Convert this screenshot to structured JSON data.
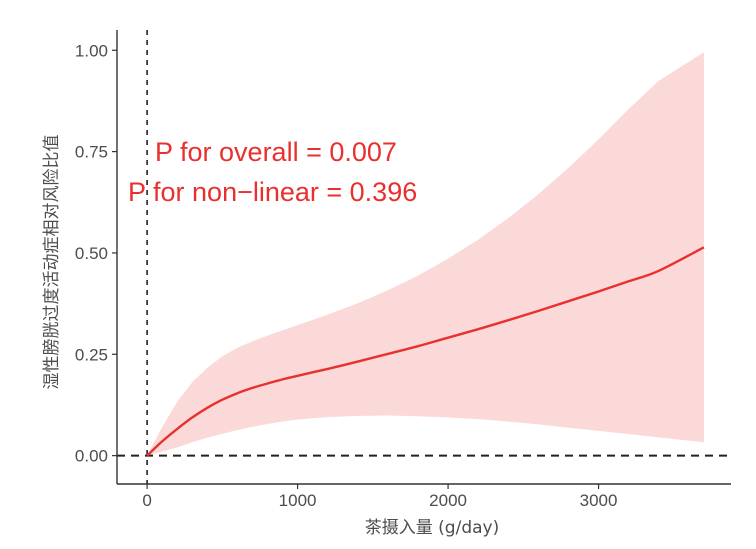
{
  "chart_data": {
    "type": "line",
    "title": "",
    "xlabel": "茶摄入量 (g/day)",
    "ylabel": "湿性膀胱过度活动症相对风险比值",
    "xlim": [
      -200,
      3880
    ],
    "ylim": [
      -0.07,
      1.05
    ],
    "x_ticks": [
      0,
      1000,
      2000,
      3000
    ],
    "x_tick_labels": [
      "0",
      "1000",
      "2000",
      "3000"
    ],
    "y_ticks": [
      0,
      0.25,
      0.5,
      0.75,
      1.0
    ],
    "y_tick_labels": [
      "0.00",
      "0.25",
      "0.50",
      "0.75",
      "1.00"
    ],
    "grid": false,
    "reference_lines": {
      "vertical_x": 0,
      "horizontal_y": 0,
      "style": "dashed"
    },
    "colors": {
      "line": "#e8312f",
      "ribbon": "#fbd9d9",
      "axis": "#333333",
      "text": "#4d4d4d"
    },
    "series": [
      {
        "x": [
          0,
          100,
          200,
          300,
          400,
          500,
          600,
          700,
          800,
          900,
          1000,
          1200,
          1400,
          1600,
          1800,
          2000,
          2200,
          2400,
          2600,
          2800,
          3000,
          3200,
          3400,
          3700
        ],
        "y": [
          0.0,
          0.035,
          0.066,
          0.094,
          0.118,
          0.138,
          0.154,
          0.167,
          0.178,
          0.188,
          0.197,
          0.214,
          0.232,
          0.251,
          0.27,
          0.291,
          0.312,
          0.334,
          0.357,
          0.381,
          0.405,
          0.43,
          0.456,
          0.514
        ],
        "lower": [
          0.0,
          0.01,
          0.02,
          0.033,
          0.044,
          0.054,
          0.063,
          0.071,
          0.078,
          0.084,
          0.089,
          0.095,
          0.098,
          0.099,
          0.097,
          0.094,
          0.09,
          0.084,
          0.077,
          0.069,
          0.061,
          0.053,
          0.045,
          0.033
        ],
        "upper": [
          0.0,
          0.07,
          0.133,
          0.181,
          0.217,
          0.245,
          0.266,
          0.282,
          0.296,
          0.309,
          0.322,
          0.348,
          0.376,
          0.408,
          0.444,
          0.486,
          0.533,
          0.586,
          0.645,
          0.71,
          0.78,
          0.855,
          0.925,
          0.995
        ]
      }
    ],
    "annotations": [
      "P for overall = 0.007",
      "P for non−linear = 0.396"
    ]
  }
}
